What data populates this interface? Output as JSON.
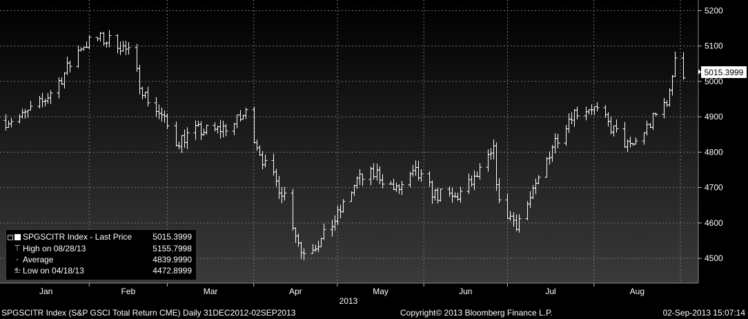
{
  "chart_data": {
    "type": "ohlc",
    "title": "",
    "xlabel": "2013",
    "ylabel": "",
    "ylim": [
      4430,
      5230
    ],
    "y_ticks": [
      4500,
      4600,
      4700,
      4800,
      4900,
      5000,
      5100,
      5200
    ],
    "x_tick_labels": [
      "Jan",
      "Feb",
      "Mar",
      "Apr",
      "May",
      "Jun",
      "Jul",
      "Aug"
    ],
    "grid": true,
    "last_price_label": "5015.3999",
    "series": [
      {
        "name": "SPGSCITR Index - Last Price",
        "approx_close_path": [
          [
            "2013-01-02",
            4890
          ],
          [
            "2013-01-08",
            4900
          ],
          [
            "2013-01-15",
            4940
          ],
          [
            "2013-01-22",
            5010
          ],
          [
            "2013-01-29",
            5100
          ],
          [
            "2013-02-04",
            5120
          ],
          [
            "2013-02-11",
            5110
          ],
          [
            "2013-02-15",
            5080
          ],
          [
            "2013-02-21",
            4960
          ],
          [
            "2013-02-27",
            4900
          ],
          [
            "2013-03-04",
            4830
          ],
          [
            "2013-03-11",
            4860
          ],
          [
            "2013-03-18",
            4860
          ],
          [
            "2013-03-25",
            4880
          ],
          [
            "2013-03-29",
            4910
          ],
          [
            "2013-04-05",
            4760
          ],
          [
            "2013-04-12",
            4680
          ],
          [
            "2013-04-18",
            4520
          ],
          [
            "2013-04-25",
            4550
          ],
          [
            "2013-05-01",
            4620
          ],
          [
            "2013-05-08",
            4720
          ],
          [
            "2013-05-15",
            4740
          ],
          [
            "2013-05-22",
            4690
          ],
          [
            "2013-05-29",
            4740
          ],
          [
            "2013-06-05",
            4680
          ],
          [
            "2013-06-12",
            4670
          ],
          [
            "2013-06-19",
            4720
          ],
          [
            "2013-06-26",
            4800
          ],
          [
            "2013-06-28",
            4650
          ],
          [
            "2013-07-04",
            4600
          ],
          [
            "2013-07-10",
            4680
          ],
          [
            "2013-07-17",
            4820
          ],
          [
            "2013-07-24",
            4910
          ],
          [
            "2013-07-31",
            4930
          ],
          [
            "2013-08-07",
            4870
          ],
          [
            "2013-08-14",
            4810
          ],
          [
            "2013-08-21",
            4880
          ],
          [
            "2013-08-28",
            4960
          ],
          [
            "2013-08-30",
            5080
          ],
          [
            "2013-09-02",
            5015
          ]
        ]
      }
    ]
  },
  "legend": {
    "rows": [
      {
        "glyph": "square",
        "label": "SPGSCITR Index - Last Price",
        "value": "5015.3999"
      },
      {
        "glyph": "T",
        "label": "High on 08/28/13",
        "value": "5155.7998"
      },
      {
        "glyph": "-+-",
        "label": "Average",
        "value": "4839.9990"
      },
      {
        "glyph": "⊥",
        "label": "Low on 04/18/13",
        "value": "4472.8999"
      }
    ]
  },
  "footer": {
    "left": "SPGSCITR Index (S&P GSCI Total Return CME)  Daily 31DEC2012-02SEP2013",
    "mid": "Copyright© 2013 Bloomberg Finance L.P.",
    "right": "02-Sep-2013 15:07:14"
  }
}
